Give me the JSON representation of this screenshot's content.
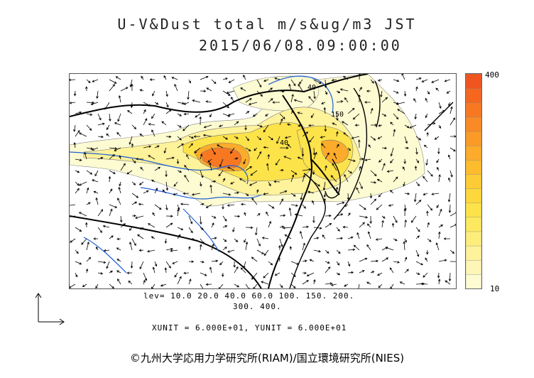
{
  "title": {
    "line1": "U-V&Dust total m/s&ug/m3 JST",
    "line2": "2015/06/08.09:00:00"
  },
  "colorbar": {
    "max_label": "400",
    "min_label": "10",
    "colors": [
      "#fdfbd2",
      "#fdf6b6",
      "#fef29a",
      "#fdee7c",
      "#fde95f",
      "#fde34a",
      "#fdd83c",
      "#fdcb35",
      "#fdbb2e",
      "#fcab2a",
      "#fb9a26",
      "#fa8a25",
      "#f87822",
      "#f5661f",
      "#f05520"
    ]
  },
  "levels": {
    "line1": "lev= 10.0 20.0 40.0 60.0 100. 150. 200.",
    "line2": "300. 400."
  },
  "units": "XUNIT = 6.000E+01, YUNIT = 6.000E+01",
  "map_labels": {
    "contour_a": "40",
    "contour_b": "150",
    "contour_c": "40"
  },
  "copyright": "©九州大学応用力学研究所(RIAM)/国立環境研究所(NIES)"
}
